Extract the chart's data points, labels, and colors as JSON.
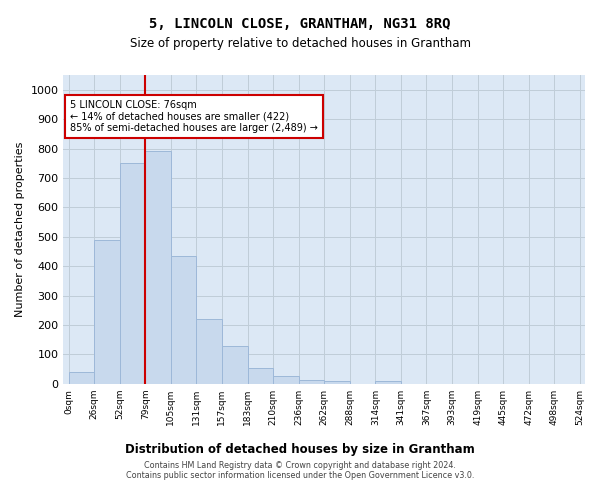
{
  "title": "5, LINCOLN CLOSE, GRANTHAM, NG31 8RQ",
  "subtitle": "Size of property relative to detached houses in Grantham",
  "xlabel": "Distribution of detached houses by size in Grantham",
  "ylabel": "Number of detached properties",
  "footnote1": "Contains HM Land Registry data © Crown copyright and database right 2024.",
  "footnote2": "Contains public sector information licensed under the Open Government Licence v3.0.",
  "bar_color": "#c8d9ed",
  "bar_edge_color": "#9db8d8",
  "grid_color": "#c0cdd8",
  "bg_color": "#dce8f5",
  "annotation_box_color": "#cc0000",
  "annotation_line_color": "#cc0000",
  "property_bin_index": 2,
  "annotation_text": "5 LINCOLN CLOSE: 76sqm\n← 14% of detached houses are smaller (422)\n85% of semi-detached houses are larger (2,489) →",
  "bin_labels": [
    "0sqm",
    "26sqm",
    "52sqm",
    "79sqm",
    "105sqm",
    "131sqm",
    "157sqm",
    "183sqm",
    "210sqm",
    "236sqm",
    "262sqm",
    "288sqm",
    "314sqm",
    "341sqm",
    "367sqm",
    "393sqm",
    "419sqm",
    "445sqm",
    "472sqm",
    "498sqm",
    "524sqm"
  ],
  "bar_heights": [
    40,
    490,
    750,
    790,
    435,
    220,
    130,
    55,
    25,
    12,
    8,
    0,
    10,
    0,
    0,
    0,
    0,
    0,
    0,
    0
  ],
  "ylim": [
    0,
    1050
  ],
  "yticks": [
    0,
    100,
    200,
    300,
    400,
    500,
    600,
    700,
    800,
    900,
    1000
  ],
  "n_bins": 20
}
